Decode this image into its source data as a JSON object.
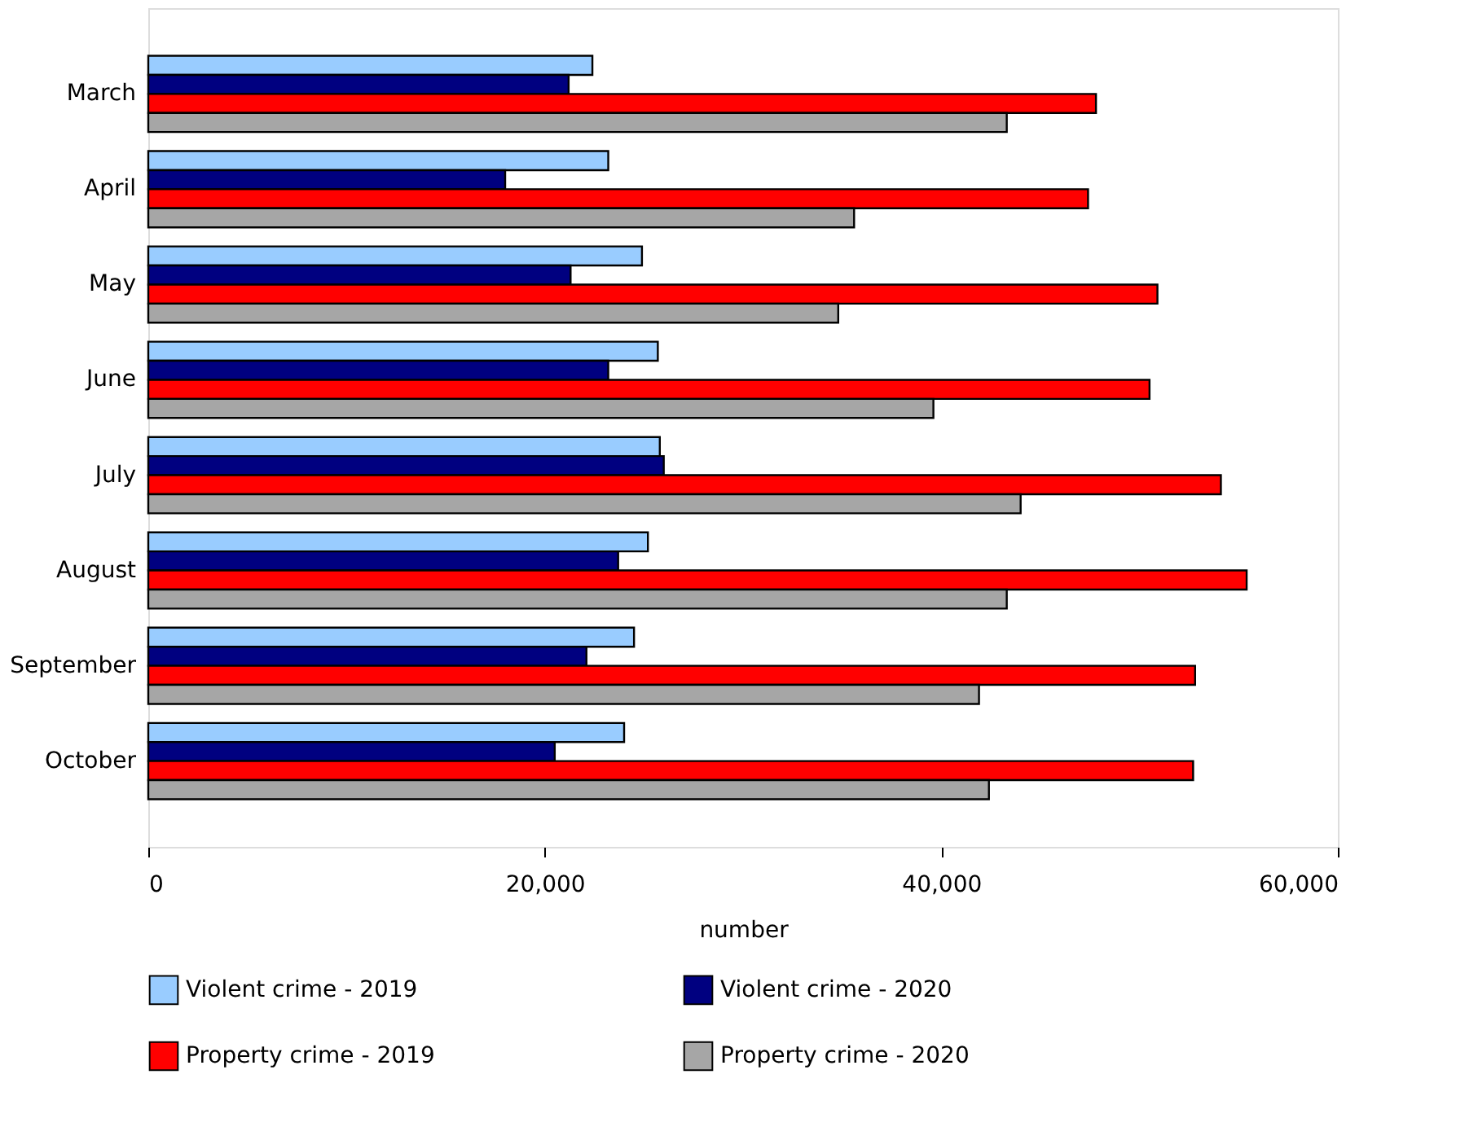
{
  "chart_data": {
    "type": "bar",
    "orientation": "horizontal",
    "xlabel": "number",
    "categories": [
      "March",
      "April",
      "May",
      "June",
      "July",
      "August",
      "September",
      "October"
    ],
    "series": [
      {
        "name": "Violent crime - 2019",
        "color": "#99ccff",
        "values": [
          22400,
          23200,
          24900,
          25700,
          25800,
          25200,
          24500,
          24000
        ]
      },
      {
        "name": "Violent crime - 2020",
        "color": "#000080",
        "values": [
          21200,
          18000,
          21300,
          23200,
          26000,
          23700,
          22100,
          20500
        ]
      },
      {
        "name": "Property crime - 2019",
        "color": "#ff0000",
        "values": [
          47800,
          47400,
          50900,
          50500,
          54100,
          55400,
          52800,
          52700
        ]
      },
      {
        "name": "Property crime - 2020",
        "color": "#a6a6a6",
        "values": [
          43300,
          35600,
          34800,
          39600,
          44000,
          43300,
          41900,
          42400
        ]
      }
    ],
    "xlim": [
      0,
      60000
    ],
    "xticks": [
      0,
      {
        "value": 20000,
        "label": "20,000"
      },
      {
        "value": 40000,
        "label": "40,000"
      },
      {
        "value": 60000,
        "label": "60,000"
      }
    ],
    "grid": false,
    "legend": "bottom"
  }
}
